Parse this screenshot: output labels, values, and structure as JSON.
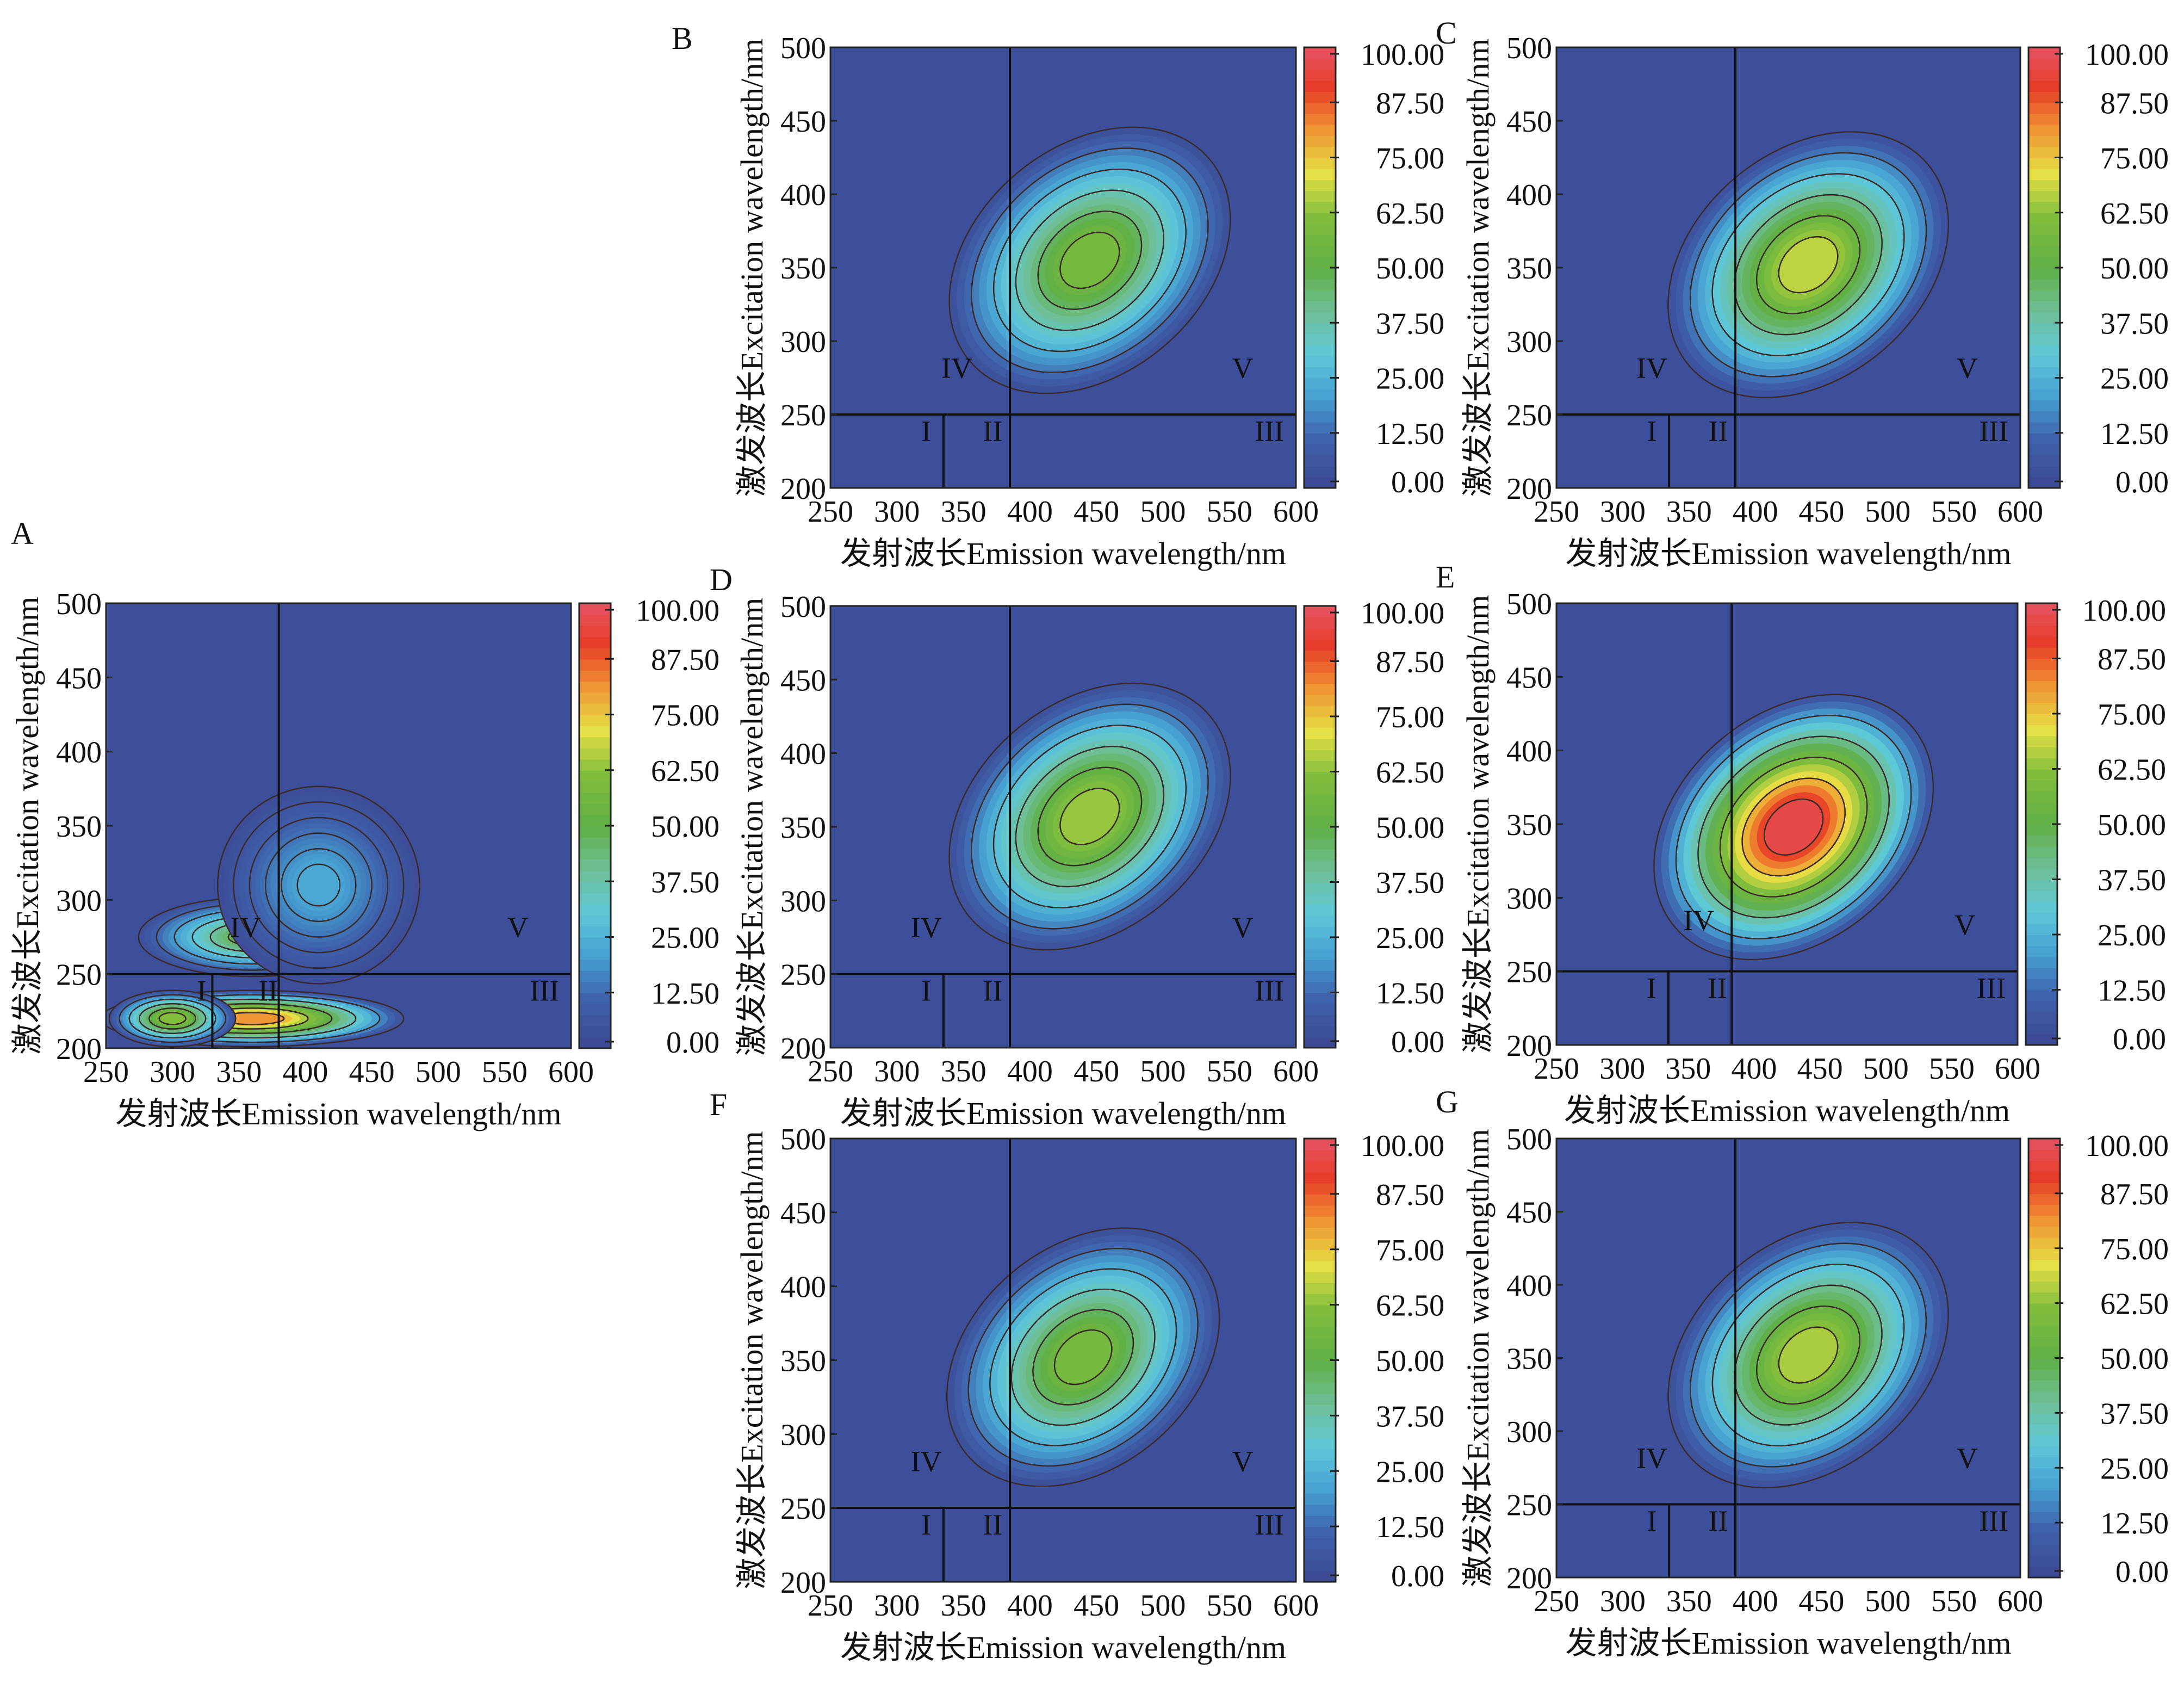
{
  "figure": {
    "panel_letters": [
      "A",
      "B",
      "C",
      "D",
      "E",
      "F",
      "G"
    ]
  },
  "chart_data": [
    {
      "type": "heatmap",
      "panel": "A",
      "xlabel": "发射波长Emission wavelength/nm",
      "ylabel": "激发波长Excitation wavelength/nm",
      "xlim": [
        250,
        600
      ],
      "ylim": [
        200,
        500
      ],
      "xticks": [
        "250",
        "300",
        "350",
        "400",
        "450",
        "500",
        "550",
        "600"
      ],
      "yticks": [
        "200",
        "250",
        "300",
        "350",
        "400",
        "450",
        "500"
      ],
      "colorbar": {
        "min": 0,
        "max": 100,
        "ticks": [
          "0.00",
          "12.50",
          "25.00",
          "37.50",
          "50.00",
          "62.50",
          "75.00",
          "87.50",
          "100.00"
        ]
      },
      "regions": [
        {
          "label": "I",
          "x": 322,
          "y": 232
        },
        {
          "label": "II",
          "x": 372,
          "y": 232
        },
        {
          "label": "III",
          "x": 580,
          "y": 232
        },
        {
          "label": "IV",
          "x": 355,
          "y": 275
        },
        {
          "label": "V",
          "x": 560,
          "y": 275
        }
      ],
      "dividers": {
        "ex": 250,
        "em": [
          330,
          380
        ]
      },
      "peaks": [
        {
          "em": 360,
          "ex": 220,
          "intensity": 82,
          "sx": 60,
          "sy": 10
        },
        {
          "em": 300,
          "ex": 220,
          "intensity": 62,
          "sx": 25,
          "sy": 10
        },
        {
          "em": 360,
          "ex": 275,
          "intensity": 48,
          "sx": 45,
          "sy": 14
        },
        {
          "em": 410,
          "ex": 310,
          "intensity": 22,
          "sx": 40,
          "sy": 35
        }
      ]
    },
    {
      "type": "heatmap",
      "panel": "B",
      "xlabel": "发射波长Emission wavelength/nm",
      "ylabel": "激发波长Excitation wavelength/nm",
      "xlim": [
        250,
        600
      ],
      "ylim": [
        200,
        500
      ],
      "xticks": [
        "250",
        "300",
        "350",
        "400",
        "450",
        "500",
        "550",
        "600"
      ],
      "yticks": [
        "200",
        "250",
        "300",
        "350",
        "400",
        "450",
        "500"
      ],
      "colorbar": {
        "min": 0,
        "max": 100,
        "ticks": [
          "0.00",
          "12.50",
          "25.00",
          "37.50",
          "50.00",
          "62.50",
          "75.00",
          "87.50",
          "100.00"
        ]
      },
      "regions": [
        {
          "label": "I",
          "x": 322,
          "y": 232
        },
        {
          "label": "II",
          "x": 372,
          "y": 232
        },
        {
          "label": "III",
          "x": 580,
          "y": 232
        },
        {
          "label": "IV",
          "x": 345,
          "y": 275
        },
        {
          "label": "V",
          "x": 560,
          "y": 275
        }
      ],
      "dividers": {
        "ex": 250,
        "em": [
          335,
          385
        ]
      },
      "peaks": [
        {
          "em": 445,
          "ex": 355,
          "intensity": 58,
          "sx": 62,
          "sy": 62
        }
      ]
    },
    {
      "type": "heatmap",
      "panel": "C",
      "xlabel": "发射波长Emission wavelength/nm",
      "ylabel": "激发波长Excitation wavelength/nm",
      "xlim": [
        250,
        600
      ],
      "ylim": [
        200,
        500
      ],
      "xticks": [
        "250",
        "300",
        "350",
        "400",
        "450",
        "500",
        "550",
        "600"
      ],
      "yticks": [
        "200",
        "250",
        "300",
        "350",
        "400",
        "450",
        "500"
      ],
      "colorbar": {
        "min": 0,
        "max": 100,
        "ticks": [
          "0.00",
          "12.50",
          "25.00",
          "37.50",
          "50.00",
          "62.50",
          "75.00",
          "87.50",
          "100.00"
        ]
      },
      "regions": [
        {
          "label": "I",
          "x": 322,
          "y": 232
        },
        {
          "label": "II",
          "x": 372,
          "y": 232
        },
        {
          "label": "III",
          "x": 580,
          "y": 232
        },
        {
          "label": "IV",
          "x": 322,
          "y": 275
        },
        {
          "label": "V",
          "x": 560,
          "y": 275
        }
      ],
      "dividers": {
        "ex": 250,
        "em": [
          335,
          385
        ]
      },
      "peaks": [
        {
          "em": 440,
          "ex": 352,
          "intensity": 68,
          "sx": 62,
          "sy": 62
        }
      ]
    },
    {
      "type": "heatmap",
      "panel": "D",
      "xlabel": "发射波长Emission wavelength/nm",
      "ylabel": "激发波长Excitation wavelength/nm",
      "xlim": [
        250,
        600
      ],
      "ylim": [
        200,
        500
      ],
      "xticks": [
        "250",
        "300",
        "350",
        "400",
        "450",
        "500",
        "550",
        "600"
      ],
      "yticks": [
        "200",
        "250",
        "300",
        "350",
        "400",
        "450",
        "500"
      ],
      "colorbar": {
        "min": 0,
        "max": 100,
        "ticks": [
          "0.00",
          "12.50",
          "25.00",
          "37.50",
          "50.00",
          "62.50",
          "75.00",
          "87.50",
          "100.00"
        ]
      },
      "regions": [
        {
          "label": "I",
          "x": 322,
          "y": 232
        },
        {
          "label": "II",
          "x": 372,
          "y": 232
        },
        {
          "label": "III",
          "x": 580,
          "y": 232
        },
        {
          "label": "IV",
          "x": 322,
          "y": 275
        },
        {
          "label": "V",
          "x": 560,
          "y": 275
        }
      ],
      "dividers": {
        "ex": 250,
        "em": [
          335,
          385
        ]
      },
      "peaks": [
        {
          "em": 445,
          "ex": 357,
          "intensity": 64,
          "sx": 62,
          "sy": 62
        }
      ]
    },
    {
      "type": "heatmap",
      "panel": "E",
      "xlabel": "发射波长Emission wavelength/nm",
      "ylabel": "激发波长Excitation wavelength/nm",
      "xlim": [
        250,
        600
      ],
      "ylim": [
        200,
        500
      ],
      "xticks": [
        "250",
        "300",
        "350",
        "400",
        "450",
        "500",
        "550",
        "600"
      ],
      "yticks": [
        "200",
        "250",
        "300",
        "350",
        "400",
        "450",
        "500"
      ],
      "colorbar": {
        "min": 0,
        "max": 100,
        "ticks": [
          "0.00",
          "12.50",
          "25.00",
          "37.50",
          "50.00",
          "62.50",
          "75.00",
          "87.50",
          "100.00"
        ]
      },
      "regions": [
        {
          "label": "I",
          "x": 322,
          "y": 232
        },
        {
          "label": "II",
          "x": 372,
          "y": 232
        },
        {
          "label": "III",
          "x": 580,
          "y": 232
        },
        {
          "label": "IV",
          "x": 358,
          "y": 278
        },
        {
          "label": "V",
          "x": 560,
          "y": 275
        }
      ],
      "dividers": {
        "ex": 250,
        "em": [
          335,
          383
        ]
      },
      "peaks": [
        {
          "em": 430,
          "ex": 348,
          "intensity": 97,
          "sx": 62,
          "sy": 62
        }
      ]
    },
    {
      "type": "heatmap",
      "panel": "F",
      "xlabel": "发射波长Emission wavelength/nm",
      "ylabel": "激发波长Excitation wavelength/nm",
      "xlim": [
        250,
        600
      ],
      "ylim": [
        200,
        500
      ],
      "xticks": [
        "250",
        "300",
        "350",
        "400",
        "450",
        "500",
        "550",
        "600"
      ],
      "yticks": [
        "200",
        "250",
        "300",
        "350",
        "400",
        "450",
        "500"
      ],
      "colorbar": {
        "min": 0,
        "max": 100,
        "ticks": [
          "0.00",
          "12.50",
          "25.00",
          "37.50",
          "50.00",
          "62.50",
          "75.00",
          "87.50",
          "100.00"
        ]
      },
      "regions": [
        {
          "label": "I",
          "x": 322,
          "y": 232
        },
        {
          "label": "II",
          "x": 372,
          "y": 232
        },
        {
          "label": "III",
          "x": 580,
          "y": 232
        },
        {
          "label": "IV",
          "x": 322,
          "y": 275
        },
        {
          "label": "V",
          "x": 560,
          "y": 275
        }
      ],
      "dividers": {
        "ex": 250,
        "em": [
          335,
          385
        ]
      },
      "peaks": [
        {
          "em": 440,
          "ex": 352,
          "intensity": 58,
          "sx": 60,
          "sy": 60
        }
      ]
    },
    {
      "type": "heatmap",
      "panel": "G",
      "xlabel": "发射波长Emission wavelength/nm",
      "ylabel": "激发波长Excitation wavelength/nm",
      "xlim": [
        250,
        600
      ],
      "ylim": [
        200,
        500
      ],
      "xticks": [
        "250",
        "300",
        "350",
        "400",
        "450",
        "500",
        "550",
        "600"
      ],
      "yticks": [
        "200",
        "250",
        "300",
        "350",
        "400",
        "450",
        "500"
      ],
      "colorbar": {
        "min": 0,
        "max": 100,
        "ticks": [
          "0.00",
          "12.50",
          "25.00",
          "37.50",
          "50.00",
          "62.50",
          "75.00",
          "87.50",
          "100.00"
        ]
      },
      "regions": [
        {
          "label": "I",
          "x": 322,
          "y": 232
        },
        {
          "label": "II",
          "x": 372,
          "y": 232
        },
        {
          "label": "III",
          "x": 580,
          "y": 232
        },
        {
          "label": "IV",
          "x": 322,
          "y": 275
        },
        {
          "label": "V",
          "x": 560,
          "y": 275
        }
      ],
      "dividers": {
        "ex": 250,
        "em": [
          335,
          385
        ]
      },
      "peaks": [
        {
          "em": 440,
          "ex": 352,
          "intensity": 66,
          "sx": 62,
          "sy": 62
        }
      ]
    }
  ]
}
